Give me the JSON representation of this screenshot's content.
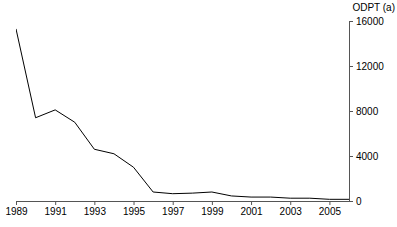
{
  "chart_data": {
    "type": "line",
    "y_label": "ODPT (a)",
    "x": [
      1989,
      1990,
      1991,
      1992,
      1993,
      1994,
      1995,
      1996,
      1997,
      1998,
      1999,
      2000,
      2001,
      2002,
      2003,
      2004,
      2005,
      2006
    ],
    "values": [
      15300,
      7400,
      8100,
      7000,
      4600,
      4200,
      3000,
      800,
      650,
      700,
      800,
      450,
      350,
      350,
      250,
      250,
      150,
      150
    ],
    "color": "#000000",
    "xlim": [
      1989,
      2006
    ],
    "xticks": [
      1989,
      1991,
      1993,
      1995,
      1997,
      1999,
      2001,
      2003,
      2005
    ],
    "ylim": [
      0,
      16000
    ],
    "yticks": [
      0,
      4000,
      8000,
      12000,
      16000
    ]
  }
}
